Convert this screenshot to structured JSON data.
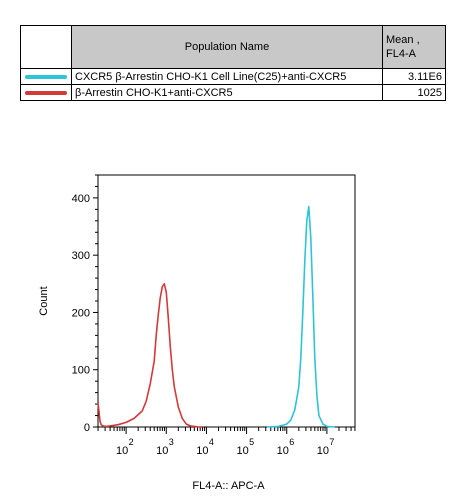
{
  "legend": {
    "header_name": "Population Name",
    "header_mean": "Mean ,\nFL4-A",
    "rows": [
      {
        "name": "CXCR5 β-Arrestin CHO-K1 Cell Line(C25)+anti-CXCR5",
        "mean": "3.11E6",
        "color": "#2ec4d6"
      },
      {
        "name": "β-Arrestin CHO-K1+anti-CXCR5",
        "mean": "1025",
        "color": "#d23a3a"
      }
    ]
  },
  "chart_data": {
    "type": "line",
    "xlabel": "FL4-A:: APC-A",
    "ylabel": "Count",
    "xscale": "log",
    "xlim": [
      1.3,
      7.7
    ],
    "ylim": [
      0,
      440
    ],
    "yticks": [
      0,
      100,
      200,
      300,
      400
    ],
    "xtick_labels": [
      {
        "exp": 2,
        "base": "10",
        "sup": "2"
      },
      {
        "exp": 3,
        "base": "10",
        "sup": "3"
      },
      {
        "exp": 4,
        "base": "10",
        "sup": "4"
      },
      {
        "exp": 5,
        "base": "10",
        "sup": "5"
      },
      {
        "exp": 6,
        "base": "10",
        "sup": "6"
      },
      {
        "exp": 7,
        "base": "10",
        "sup": "7"
      }
    ],
    "series": [
      {
        "name": "β-Arrestin CHO-K1+anti-CXCR5",
        "color": "#d23a3a",
        "x": [
          1.3,
          1.32,
          1.35,
          1.38,
          1.42,
          1.5,
          1.6,
          1.8,
          2.0,
          2.2,
          2.4,
          2.5,
          2.6,
          2.7,
          2.75,
          2.8,
          2.85,
          2.9,
          2.95,
          3.0,
          3.05,
          3.1,
          3.15,
          3.2,
          3.3,
          3.4,
          3.5,
          3.6,
          3.7,
          3.8,
          3.9
        ],
        "y": [
          42,
          30,
          10,
          4,
          2,
          1,
          2,
          4,
          8,
          15,
          28,
          45,
          75,
          115,
          160,
          195,
          225,
          245,
          250,
          235,
          190,
          140,
          100,
          70,
          35,
          15,
          5,
          2,
          1,
          0,
          0
        ]
      },
      {
        "name": "CXCR5 β-Arrestin CHO-K1 Cell Line(C25)+anti-CXCR5",
        "color": "#2ec4d6",
        "x": [
          5.5,
          5.8,
          6.0,
          6.1,
          6.2,
          6.3,
          6.35,
          6.4,
          6.45,
          6.5,
          6.55,
          6.6,
          6.65,
          6.7,
          6.75,
          6.8,
          6.9,
          7.0,
          7.2
        ],
        "y": [
          0,
          1,
          5,
          12,
          30,
          70,
          120,
          200,
          290,
          360,
          385,
          330,
          230,
          120,
          55,
          20,
          5,
          1,
          0
        ]
      }
    ],
    "grid": false,
    "legend": "table-above"
  }
}
